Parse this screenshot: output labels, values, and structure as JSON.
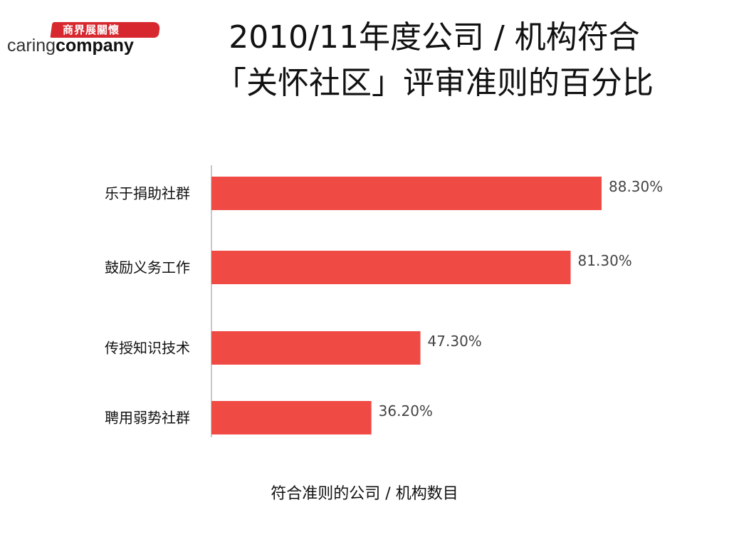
{
  "logo": {
    "brush_text": "商界展關懷",
    "word_light": "caring",
    "word_bold": "company"
  },
  "title": {
    "line1": "2010/11年度公司 / 机构符合",
    "line2": "「关怀社区」评审准则的百分比"
  },
  "chart_data": {
    "type": "bar",
    "orientation": "horizontal",
    "categories": [
      "乐于捐助社群",
      "鼓励义务工作",
      "传授知识技术",
      "聘用弱势社群"
    ],
    "values": [
      88.3,
      81.3,
      47.3,
      36.2
    ],
    "value_labels": [
      "88.30%",
      "81.30%",
      "47.30%",
      "36.20%"
    ],
    "xlabel": "符合准则的公司 / 机构数目",
    "xlim": [
      0,
      100
    ],
    "bar_color": "#f04a45",
    "grid": false,
    "legend": "none"
  }
}
